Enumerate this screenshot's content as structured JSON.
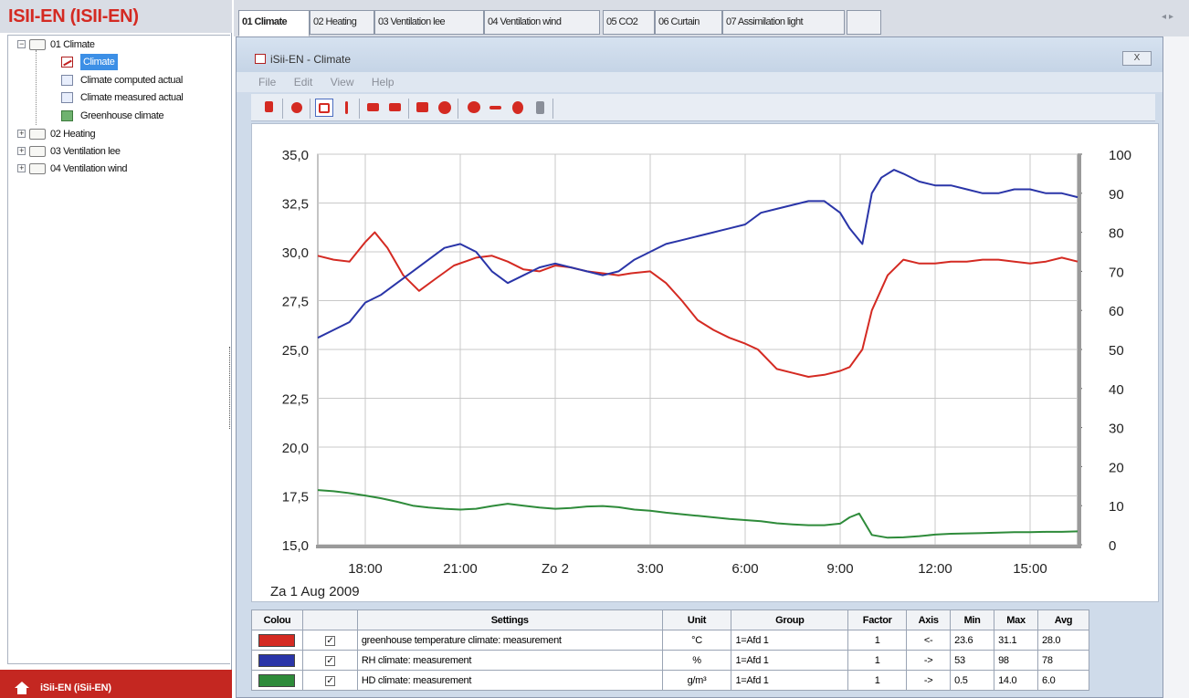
{
  "app": {
    "title": "ISII-EN (ISII-EN)",
    "footer": "iSii-EN (iSii-EN)"
  },
  "tree": {
    "root": "01 Climate",
    "children": [
      "Climate",
      "Climate computed actual",
      "Climate measured actual",
      "Greenhouse climate"
    ],
    "others": [
      "02 Heating",
      "03 Ventilation lee",
      "04 Ventilation wind"
    ]
  },
  "tabs": [
    "01 Climate",
    "02 Heating",
    "03 Ventilation lee",
    "04 Ventilation wind",
    "05 CO2",
    "06 Curtain",
    "07 Assimilation light",
    ""
  ],
  "window": {
    "title": "iSii-EN - Climate",
    "close": "X",
    "menu": [
      "File",
      "Edit",
      "View",
      "Help"
    ]
  },
  "colors": {
    "red": "#d42a22",
    "blue": "#2a35a8",
    "green": "#2e8b3a"
  },
  "chart_data": {
    "type": "line",
    "x_ticks": [
      "18:00",
      "21:00",
      "Zo  2",
      "3:00",
      "6:00",
      "9:00",
      "12:00",
      "15:00"
    ],
    "date_label": "Za  1 Aug 2009",
    "y_left": {
      "ticks": [
        "35,0",
        "32,5",
        "30,0",
        "27,5",
        "25,0",
        "22,5",
        "20,0",
        "17,5",
        "15,0"
      ],
      "range": [
        15,
        35
      ]
    },
    "y_right": {
      "ticks": [
        "100",
        "90",
        "80",
        "70",
        "60",
        "50",
        "40",
        "30",
        "20",
        "10",
        "0"
      ],
      "range": [
        0,
        100
      ]
    },
    "grid": true,
    "series": [
      {
        "name": "greenhouse temperature climate: measurement",
        "axis": "left",
        "color": "#d42a22",
        "x": [
          16.5,
          17,
          17.5,
          18,
          18.3,
          18.7,
          19.2,
          19.7,
          20.2,
          20.8,
          21.5,
          22,
          22.5,
          23,
          23.5,
          24,
          24.5,
          25,
          25.5,
          26,
          26.4,
          27,
          27.5,
          28,
          28.5,
          29,
          29.5,
          30,
          30.4,
          31,
          31.5,
          32,
          32.5,
          33,
          33.3,
          33.7,
          34,
          34.5,
          35,
          35.5,
          36,
          36.5,
          37,
          37.5,
          38,
          38.5,
          39,
          39.5,
          40,
          40.5
        ],
        "y": [
          29.8,
          29.6,
          29.5,
          30.5,
          31.0,
          30.2,
          28.8,
          28.0,
          28.6,
          29.3,
          29.7,
          29.8,
          29.5,
          29.1,
          29.0,
          29.3,
          29.2,
          29.0,
          28.9,
          28.8,
          28.9,
          29.0,
          28.4,
          27.5,
          26.5,
          26.0,
          25.6,
          25.3,
          25.0,
          24.0,
          23.8,
          23.6,
          23.7,
          23.9,
          24.1,
          25.0,
          27.0,
          28.8,
          29.6,
          29.4,
          29.4,
          29.5,
          29.5,
          29.6,
          29.6,
          29.5,
          29.4,
          29.5,
          29.7,
          29.5
        ]
      },
      {
        "name": "RH climate: measurement",
        "axis": "right",
        "color": "#2a35a8",
        "x": [
          16.5,
          17,
          17.5,
          18,
          18.5,
          19,
          19.5,
          20,
          20.5,
          21,
          21.5,
          22,
          22.5,
          23,
          23.5,
          24,
          24.5,
          25,
          25.5,
          26,
          26.5,
          27,
          27.5,
          28,
          28.5,
          29,
          29.5,
          30,
          30.5,
          31,
          31.5,
          32,
          32.5,
          33,
          33.3,
          33.7,
          34,
          34.3,
          34.7,
          35,
          35.5,
          36,
          36.5,
          37,
          37.5,
          38,
          38.5,
          39,
          39.5,
          40,
          40.5
        ],
        "y": [
          53,
          55,
          57,
          62,
          64,
          67,
          70,
          73,
          76,
          77,
          75,
          70,
          67,
          69,
          71,
          72,
          71,
          70,
          69,
          70,
          73,
          75,
          77,
          78,
          79,
          80,
          81,
          82,
          85,
          86,
          87,
          88,
          88,
          85,
          81,
          77,
          90,
          94,
          96,
          95,
          93,
          92,
          92,
          91,
          90,
          90,
          91,
          91,
          90,
          90,
          89
        ]
      },
      {
        "name": "HD climate: measurement",
        "axis": "right",
        "color": "#2e8b3a",
        "x": [
          16.5,
          17,
          17.5,
          18,
          18.5,
          19,
          19.5,
          20,
          20.5,
          21,
          21.5,
          22,
          22.5,
          23,
          23.5,
          24,
          24.5,
          25,
          25.5,
          26,
          26.5,
          27,
          27.5,
          28,
          28.5,
          29,
          29.5,
          30,
          30.5,
          31,
          31.5,
          32,
          32.5,
          33,
          33.3,
          33.6,
          34,
          34.5,
          35,
          35.5,
          36,
          36.5,
          37,
          37.5,
          38,
          38.5,
          39,
          39.5,
          40,
          40.5
        ],
        "y": [
          14.0,
          13.7,
          13.2,
          12.6,
          11.9,
          11.0,
          10.0,
          9.5,
          9.2,
          9.0,
          9.2,
          9.9,
          10.5,
          10.0,
          9.5,
          9.2,
          9.4,
          9.8,
          9.9,
          9.6,
          9.0,
          8.7,
          8.2,
          7.8,
          7.4,
          7.0,
          6.6,
          6.3,
          6.0,
          5.5,
          5.2,
          5.0,
          5.0,
          5.4,
          7.0,
          8.0,
          2.5,
          1.8,
          1.9,
          2.2,
          2.6,
          2.8,
          2.9,
          3.0,
          3.1,
          3.2,
          3.2,
          3.3,
          3.3,
          3.4
        ]
      }
    ]
  },
  "table": {
    "headers": [
      "Colou",
      "",
      "Settings",
      "Unit",
      "Group",
      "Factor",
      "Axis",
      "Min",
      "Max",
      "Avg"
    ],
    "rows": [
      {
        "color": "#d42a22",
        "check": "✓",
        "settings": "greenhouse temperature climate: measurement",
        "unit": "°C",
        "group": "1=Afd 1",
        "factor": "1",
        "axis": "<-",
        "min": "23.6",
        "max": "31.1",
        "avg": "28.0"
      },
      {
        "color": "#2a35a8",
        "check": "✓",
        "settings": "RH climate: measurement",
        "unit": "%",
        "group": "1=Afd 1",
        "factor": "1",
        "axis": "->",
        "min": "53",
        "max": "98",
        "avg": "78"
      },
      {
        "color": "#2e8b3a",
        "check": "✓",
        "settings": "HD climate: measurement",
        "unit": "g/m³",
        "group": "1=Afd 1",
        "factor": "1",
        "axis": "->",
        "min": "0.5",
        "max": "14.0",
        "avg": "6.0"
      }
    ]
  }
}
